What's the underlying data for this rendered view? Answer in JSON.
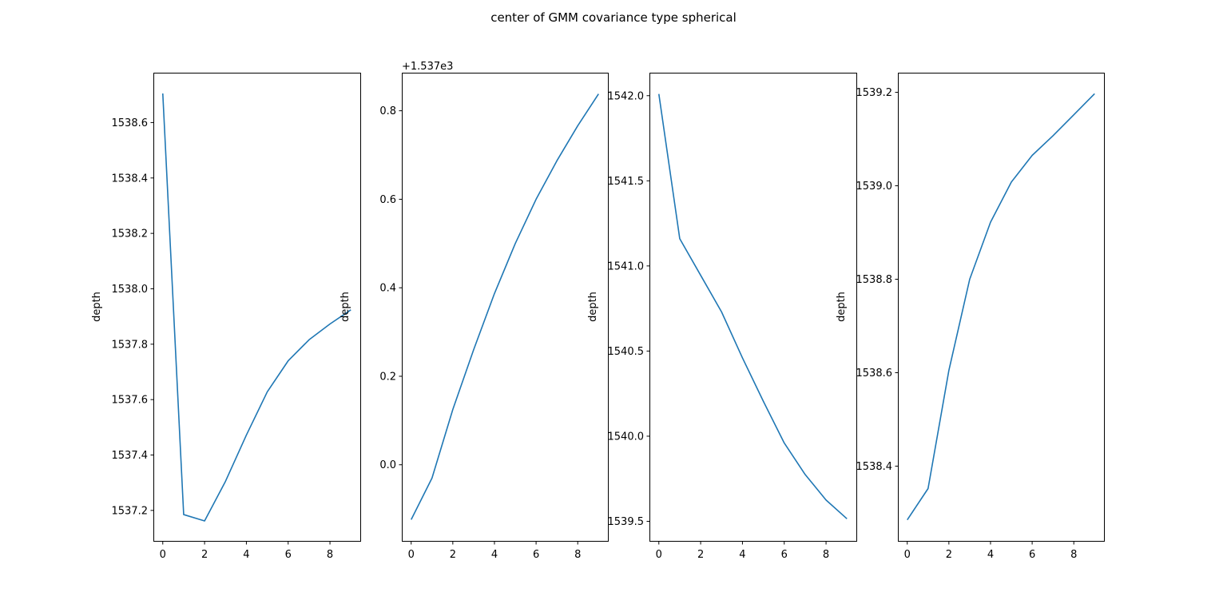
{
  "chart_data": {
    "title": "center of GMM covariance type spherical",
    "color": "#1f77b4",
    "subplots": [
      {
        "type": "line",
        "x": [
          0,
          1,
          2,
          3,
          4,
          5,
          6,
          7,
          8,
          9
        ],
        "y": [
          1538.705,
          1537.185,
          1537.162,
          1537.305,
          1537.472,
          1537.628,
          1537.74,
          1537.816,
          1537.873,
          1537.924
        ],
        "xlim": [
          -0.45,
          9.45
        ],
        "ylim": [
          1537.09,
          1538.78
        ],
        "xticks": [
          0,
          2,
          4,
          6,
          8
        ],
        "yticks": [
          1537.2,
          1537.4,
          1537.6,
          1537.8,
          1538.0,
          1538.2,
          1538.4,
          1538.6
        ],
        "ytick_labels": [
          "1537.2",
          "1537.4",
          "1537.6",
          "1537.8",
          "1538.0",
          "1538.2",
          "1538.4",
          "1538.6"
        ],
        "ylabel": "depth",
        "offset": ""
      },
      {
        "type": "line",
        "x": [
          0,
          1,
          2,
          3,
          4,
          5,
          6,
          7,
          8,
          9
        ],
        "y": [
          -0.124,
          -0.03,
          0.125,
          0.26,
          0.387,
          0.5,
          0.6,
          0.687,
          0.766,
          0.838
        ],
        "xlim": [
          -0.45,
          9.45
        ],
        "ylim": [
          -0.172,
          0.886
        ],
        "xticks": [
          0,
          2,
          4,
          6,
          8
        ],
        "yticks": [
          0.0,
          0.2,
          0.4,
          0.6,
          0.8
        ],
        "ytick_labels": [
          "0.0",
          "0.2",
          "0.4",
          "0.6",
          "0.8"
        ],
        "ylabel": "depth",
        "offset": "+1.537e3"
      },
      {
        "type": "line",
        "x": [
          0,
          1,
          2,
          3,
          4,
          5,
          6,
          7,
          8,
          9
        ],
        "y": [
          1542.01,
          1541.16,
          1540.945,
          1540.73,
          1540.46,
          1540.205,
          1539.96,
          1539.775,
          1539.625,
          1539.515
        ],
        "xlim": [
          -0.45,
          9.45
        ],
        "ylim": [
          1539.385,
          1542.135
        ],
        "xticks": [
          0,
          2,
          4,
          6,
          8
        ],
        "yticks": [
          1539.5,
          1540.0,
          1540.5,
          1541.0,
          1541.5,
          1542.0
        ],
        "ytick_labels": [
          "1539.5",
          "1540.0",
          "1540.5",
          "1541.0",
          "1541.5",
          "1542.0"
        ],
        "ylabel": "depth",
        "offset": ""
      },
      {
        "type": "line",
        "x": [
          0,
          1,
          2,
          3,
          4,
          5,
          6,
          7,
          8,
          9
        ],
        "y": [
          1538.285,
          1538.352,
          1538.605,
          1538.8,
          1538.922,
          1539.008,
          1539.065,
          1539.107,
          1539.152,
          1539.197
        ],
        "xlim": [
          -0.45,
          9.45
        ],
        "ylim": [
          1538.24,
          1539.242
        ],
        "xticks": [
          0,
          2,
          4,
          6,
          8
        ],
        "yticks": [
          1538.4,
          1538.6,
          1538.8,
          1539.0,
          1539.2
        ],
        "ytick_labels": [
          "1538.4",
          "1538.6",
          "1538.8",
          "1539.0",
          "1539.2"
        ],
        "ylabel": "depth",
        "offset": ""
      }
    ]
  }
}
